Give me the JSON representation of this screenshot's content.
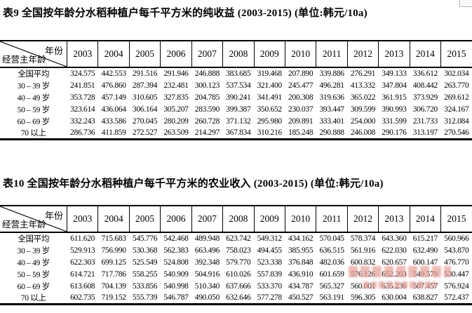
{
  "page": {
    "background": "#ffffff",
    "text_color": "#000000",
    "watermark_color": "#e8a39b"
  },
  "tables": [
    {
      "caption": "表9 全国按年龄分水稻种植户每千平方米的纯收益 (2003-2015) (单位:韩元/10a)",
      "corner": {
        "top_right": "年份",
        "bottom_left": "经营主年龄"
      },
      "years": [
        "2003",
        "2004",
        "2005",
        "2006",
        "2007",
        "2008",
        "2009",
        "2010",
        "2011",
        "2012",
        "2013",
        "2014",
        "2015"
      ],
      "rows": [
        {
          "label": "全国平均",
          "values": [
            "324.575",
            "442.553",
            "291.516",
            "291.946",
            "246.888",
            "383.685",
            "319.468",
            "207.890",
            "339.886",
            "276.291",
            "349.133",
            "336.612",
            "302.034"
          ]
        },
        {
          "label": "30 – 39 岁",
          "values": [
            "241.851",
            "476.860",
            "287.394",
            "232.481",
            "300.123",
            "537.534",
            "321.400",
            "245.477",
            "496.281",
            "413.332",
            "347.804",
            "408.442",
            "263.770"
          ]
        },
        {
          "label": "40 – 49 岁",
          "values": [
            "353.728",
            "457.149",
            "310.605",
            "327.835",
            "204.785",
            "390.241",
            "341.491",
            "200.308",
            "319.636",
            "365.022",
            "361.915",
            "373.929",
            "269.612"
          ]
        },
        {
          "label": "50 – 59 岁",
          "values": [
            "323.614",
            "436.064",
            "306.164",
            "305.207",
            "283.590",
            "399.387",
            "350.652",
            "230.037",
            "393.447",
            "309.599",
            "390.993",
            "306.720",
            "324.167"
          ]
        },
        {
          "label": "60 – 69 岁",
          "values": [
            "332.243",
            "433.586",
            "270.045",
            "280.209",
            "260.728",
            "371.132",
            "295.980",
            "209.891",
            "333.401",
            "254.000",
            "331.599",
            "231.733",
            "312.084"
          ]
        },
        {
          "label": "70 以上",
          "values": [
            "286.736",
            "411.859",
            "272.527",
            "263.509",
            "214.297",
            "367.834",
            "310.216",
            "185.248",
            "290.888",
            "246.008",
            "290.176",
            "313.197",
            "270.546"
          ]
        }
      ]
    },
    {
      "caption": "表10 全国按年龄分水稻种植户每千平方米的农业收入 (2003-2015) (单位:韩元/10a)",
      "corner": {
        "top_right": "年份",
        "bottom_left": "经营主年龄"
      },
      "years": [
        "2003",
        "2004",
        "2005",
        "2006",
        "2007",
        "2008",
        "2009",
        "2010",
        "2011",
        "2012",
        "2013",
        "2014",
        "2015"
      ],
      "rows": [
        {
          "label": "全国平均",
          "values": [
            "611.620",
            "715.683",
            "545.776",
            "542.468",
            "489.948",
            "623.742",
            "549.312",
            "434.162",
            "570.045",
            "578.374",
            "643.360",
            "615.217",
            "560.966"
          ]
        },
        {
          "label": "30 – 39 岁",
          "values": [
            "529.913",
            "756.990",
            "530.368",
            "562.383",
            "663.496",
            "758.023",
            "494.455",
            "385.955",
            "636.515",
            "561.916",
            "622.030",
            "632.490",
            "543.870"
          ]
        },
        {
          "label": "40 – 49 岁",
          "values": [
            "622.303",
            "699.125",
            "525.549",
            "524.808",
            "392.348",
            "579.770",
            "523.338",
            "376.848",
            "482.036",
            "600.832",
            "620.657",
            "600.147",
            "476.770"
          ]
        },
        {
          "label": "50 – 59 岁",
          "values": [
            "614.721",
            "717.786",
            "558.255",
            "540.909",
            "504.916",
            "610.026",
            "557.839",
            "436.910",
            "601.659",
            "576.126",
            "652.203",
            "549.579",
            "530.447"
          ]
        },
        {
          "label": "60 – 69 岁",
          "values": [
            "613.608",
            "704.139",
            "533.856",
            "540.998",
            "510.340",
            "637.666",
            "533.370",
            "434.787",
            "565.327",
            "560.001",
            "635.236",
            "507.457",
            "576.924"
          ]
        },
        {
          "label": "70 以上",
          "values": [
            "602.735",
            "719.152",
            "555.739",
            "546.787",
            "490.050",
            "632.646",
            "577.278",
            "450.527",
            "563.191",
            "596.305",
            "630.004",
            "638.827",
            "572.437"
          ]
        }
      ]
    }
  ]
}
